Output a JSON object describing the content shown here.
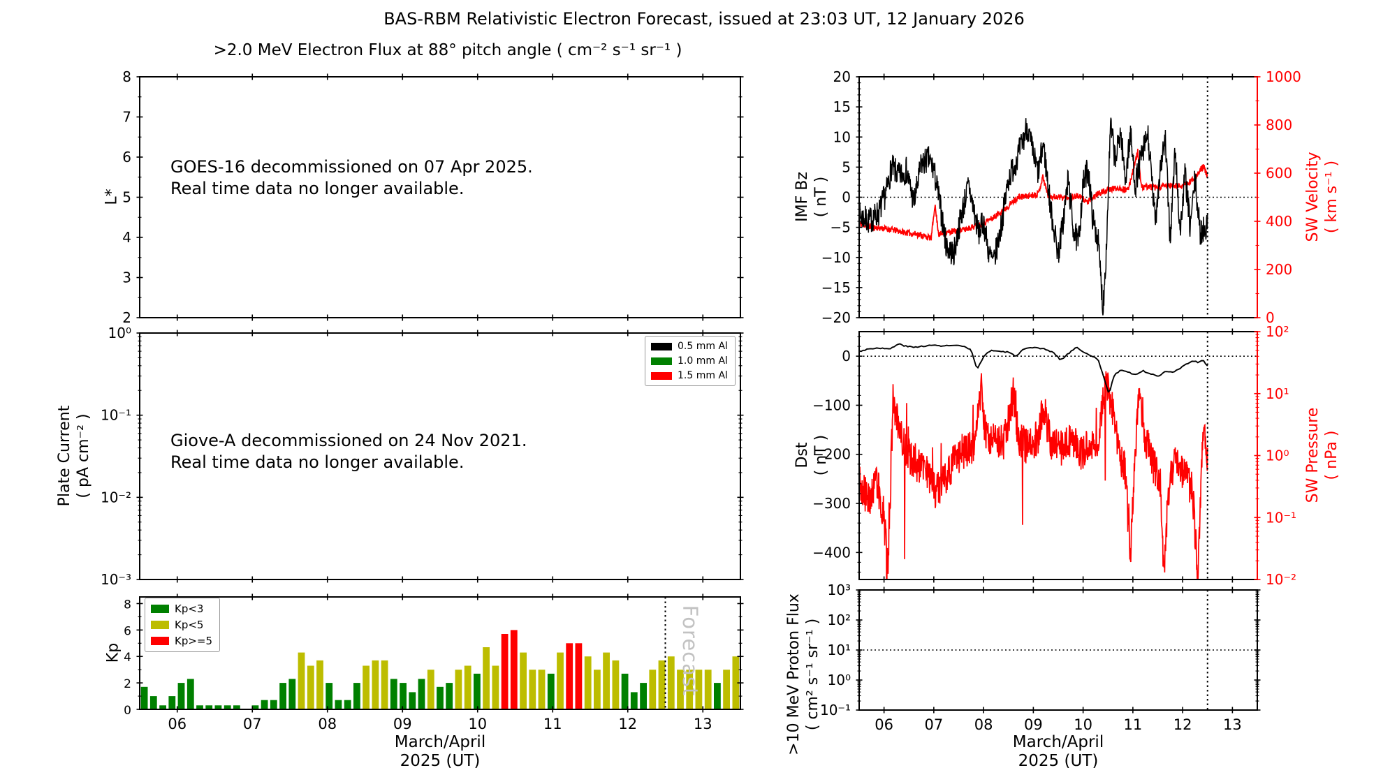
{
  "ui": {
    "figure_title": "BAS-RBM Relativistic Electron Forecast, issued at 23:03 UT, 12 January 2026"
  },
  "xaxis": {
    "tick_labels": [
      "06",
      "07",
      "08",
      "09",
      "10",
      "11",
      "12",
      "13"
    ],
    "tick_days": [
      6,
      7,
      8,
      9,
      10,
      11,
      12,
      13
    ],
    "range": [
      5.5,
      13.5
    ],
    "label": "March/April\n2025 (UT)"
  },
  "chart_data": [
    {
      "id": "electron_flux",
      "type": "empty-with-annotation",
      "title": ">2.0 MeV Electron Flux at 88° pitch angle ( cm⁻² s⁻¹ sr⁻¹ )",
      "ylabel": "L*",
      "yscale": "linear",
      "ylim": [
        2,
        8
      ],
      "yticks": [
        2,
        3,
        4,
        5,
        6,
        7,
        8
      ],
      "annotation": "GOES-16 decommissioned on 07 Apr 2025.\nReal time data no longer available."
    },
    {
      "id": "plate_current",
      "type": "empty-with-annotation",
      "ylabel": "Plate Current\n( pA cm⁻² )",
      "yscale": "log",
      "ylim": [
        0.001,
        1
      ],
      "ytick_labels": [
        "10⁰",
        "10⁻¹",
        "10⁻²",
        "10⁻³"
      ],
      "legend": [
        {
          "label": "0.5 mm Al",
          "color": "#000000"
        },
        {
          "label": "1.0 mm Al",
          "color": "#008000"
        },
        {
          "label": "1.5 mm Al",
          "color": "#ff0000"
        }
      ],
      "annotation": "Giove-A decommissioned on 24 Nov 2021.\nReal time data no longer available."
    },
    {
      "id": "kp",
      "type": "bar",
      "ylabel": "Kp",
      "ylim": [
        0,
        8.5
      ],
      "yticks": [
        0,
        2,
        4,
        6,
        8
      ],
      "bar_hours": 3,
      "values": [
        1.7,
        1.0,
        0.3,
        1.0,
        2.0,
        2.3,
        0.3,
        0.3,
        0.3,
        0.3,
        0.3,
        0.0,
        0.3,
        0.7,
        0.7,
        2.0,
        2.3,
        4.3,
        3.3,
        3.7,
        2.0,
        0.7,
        0.7,
        2.0,
        3.3,
        3.7,
        3.7,
        2.3,
        2.0,
        1.3,
        2.3,
        3.0,
        1.7,
        2.0,
        3.0,
        3.3,
        2.7,
        4.7,
        3.3,
        5.7,
        6.0,
        4.3,
        3.0,
        3.0,
        2.7,
        4.3,
        5.0,
        5.0,
        4.0,
        3.0,
        4.3,
        3.7,
        2.7,
        1.3,
        2.0,
        3.0,
        3.7,
        4.0,
        3.0,
        3.0,
        3.0,
        3.0,
        2.0,
        3.0,
        4.0
      ],
      "color_rule": {
        "green_below": 3,
        "red_from": 5
      },
      "colors": {
        "green": "#008000",
        "yellow": "#bdbd00",
        "red": "#ff0000"
      },
      "legend": [
        {
          "label": "Kp<3",
          "color": "#008000"
        },
        {
          "label": "Kp<5",
          "color": "#bdbd00"
        },
        {
          "label": "Kp>=5",
          "color": "#ff0000"
        }
      ],
      "forecast_day": 12.5,
      "forecast_label": "Forecast"
    },
    {
      "id": "imf_sw",
      "type": "line",
      "forecast_day": 12.5,
      "left": {
        "ylabel": "IMF Bz\n( nT )",
        "ylim": [
          -20,
          20
        ],
        "yticks": [
          20,
          15,
          10,
          5,
          0,
          -5,
          -10,
          -15,
          -20
        ],
        "hline": 0,
        "color": "#000000",
        "noise": 2.3,
        "seed": 7,
        "anchors": [
          [
            5.5,
            -3
          ],
          [
            5.7,
            -4
          ],
          [
            5.9,
            -2.5
          ],
          [
            6.05,
            1
          ],
          [
            6.15,
            5
          ],
          [
            6.3,
            3.5
          ],
          [
            6.45,
            4.5
          ],
          [
            6.6,
            -1
          ],
          [
            6.75,
            5.5
          ],
          [
            6.9,
            6.3
          ],
          [
            7.0,
            4.5
          ],
          [
            7.1,
            0
          ],
          [
            7.25,
            -8
          ],
          [
            7.4,
            -9.5
          ],
          [
            7.55,
            -3
          ],
          [
            7.7,
            2
          ],
          [
            7.8,
            -2
          ],
          [
            7.9,
            -6
          ],
          [
            8.0,
            -4
          ],
          [
            8.1,
            -9
          ],
          [
            8.2,
            -11
          ],
          [
            8.35,
            -5
          ],
          [
            8.5,
            3
          ],
          [
            8.65,
            6
          ],
          [
            8.8,
            9.5
          ],
          [
            8.87,
            12
          ],
          [
            9.0,
            7
          ],
          [
            9.1,
            4
          ],
          [
            9.2,
            9
          ],
          [
            9.35,
            -2
          ],
          [
            9.5,
            -9.5
          ],
          [
            9.6,
            -4
          ],
          [
            9.7,
            3
          ],
          [
            9.8,
            -5
          ],
          [
            9.9,
            -8
          ],
          [
            10.0,
            2
          ],
          [
            10.1,
            5
          ],
          [
            10.2,
            -4
          ],
          [
            10.3,
            -7
          ],
          [
            10.4,
            -18.5
          ],
          [
            10.47,
            -8
          ],
          [
            10.55,
            12
          ],
          [
            10.65,
            6
          ],
          [
            10.75,
            11
          ],
          [
            10.85,
            3
          ],
          [
            10.95,
            10.5
          ],
          [
            11.05,
            2
          ],
          [
            11.15,
            6
          ],
          [
            11.3,
            10.5
          ],
          [
            11.45,
            -4
          ],
          [
            11.55,
            5
          ],
          [
            11.65,
            9.5
          ],
          [
            11.75,
            -7
          ],
          [
            11.85,
            8
          ],
          [
            11.95,
            -6
          ],
          [
            12.05,
            4
          ],
          [
            12.15,
            -5
          ],
          [
            12.25,
            3
          ],
          [
            12.35,
            -6
          ],
          [
            12.5,
            -4.5
          ]
        ]
      },
      "right": {
        "ylabel": "SW Velocity\n( km s⁻¹ )",
        "ylim": [
          0,
          1000
        ],
        "yticks": [
          1000,
          800,
          600,
          400,
          200,
          0
        ],
        "color": "#ff0000",
        "noise": 13,
        "seed": 11,
        "anchors": [
          [
            5.5,
            390
          ],
          [
            5.8,
            375
          ],
          [
            6.1,
            368
          ],
          [
            6.4,
            355
          ],
          [
            6.7,
            345
          ],
          [
            6.95,
            330
          ],
          [
            7.02,
            470
          ],
          [
            7.1,
            345
          ],
          [
            7.3,
            355
          ],
          [
            7.6,
            365
          ],
          [
            7.9,
            385
          ],
          [
            8.2,
            415
          ],
          [
            8.5,
            465
          ],
          [
            8.7,
            500
          ],
          [
            8.9,
            505
          ],
          [
            9.1,
            515
          ],
          [
            9.19,
            585
          ],
          [
            9.3,
            505
          ],
          [
            9.6,
            498
          ],
          [
            9.9,
            505
          ],
          [
            10.1,
            480
          ],
          [
            10.3,
            515
          ],
          [
            10.5,
            530
          ],
          [
            10.7,
            540
          ],
          [
            10.9,
            528
          ],
          [
            11.1,
            690
          ],
          [
            11.17,
            540
          ],
          [
            11.3,
            545
          ],
          [
            11.5,
            538
          ],
          [
            11.7,
            550
          ],
          [
            11.9,
            545
          ],
          [
            12.1,
            555
          ],
          [
            12.3,
            595
          ],
          [
            12.42,
            630
          ],
          [
            12.5,
            580
          ]
        ]
      }
    },
    {
      "id": "dst_pressure",
      "type": "line",
      "forecast_day": 12.5,
      "left": {
        "ylabel": "Dst\n( nT )",
        "ylim": [
          -455,
          50
        ],
        "yticks": [
          0,
          -100,
          -200,
          -300,
          -400
        ],
        "hline": 0,
        "color": "#000000",
        "noise": 1.3,
        "seed": 3,
        "anchors": [
          [
            5.5,
            10
          ],
          [
            5.7,
            15
          ],
          [
            5.9,
            17
          ],
          [
            6.1,
            14
          ],
          [
            6.3,
            25
          ],
          [
            6.45,
            20
          ],
          [
            6.6,
            18
          ],
          [
            6.8,
            21
          ],
          [
            7.0,
            22
          ],
          [
            7.2,
            21
          ],
          [
            7.4,
            22
          ],
          [
            7.6,
            20
          ],
          [
            7.75,
            12
          ],
          [
            7.87,
            -28
          ],
          [
            8.0,
            0
          ],
          [
            8.15,
            12
          ],
          [
            8.3,
            10
          ],
          [
            8.5,
            8
          ],
          [
            8.65,
            0
          ],
          [
            8.8,
            14
          ],
          [
            9.0,
            17
          ],
          [
            9.2,
            15
          ],
          [
            9.4,
            8
          ],
          [
            9.55,
            -8
          ],
          [
            9.7,
            5
          ],
          [
            9.85,
            18
          ],
          [
            10.0,
            10
          ],
          [
            10.15,
            0
          ],
          [
            10.3,
            -5
          ],
          [
            10.45,
            -55
          ],
          [
            10.52,
            -78
          ],
          [
            10.62,
            -40
          ],
          [
            10.75,
            -28
          ],
          [
            10.9,
            -32
          ],
          [
            11.05,
            -38
          ],
          [
            11.2,
            -30
          ],
          [
            11.35,
            -35
          ],
          [
            11.5,
            -42
          ],
          [
            11.65,
            -30
          ],
          [
            11.8,
            -32
          ],
          [
            11.95,
            -25
          ],
          [
            12.1,
            -15
          ],
          [
            12.2,
            -9
          ],
          [
            12.3,
            -12
          ],
          [
            12.4,
            -8
          ],
          [
            12.5,
            -20
          ]
        ]
      },
      "right": {
        "ylabel": "SW Pressure\n( nPa )",
        "yscale": "log",
        "ylim": [
          0.01,
          100
        ],
        "ytick_labels": [
          "10²",
          "10¹",
          "10⁰",
          "10⁻¹",
          "10⁻²"
        ],
        "color": "#ff0000",
        "noise": 0.3,
        "seed": 19,
        "anchors": [
          [
            5.5,
            0.35
          ],
          [
            5.7,
            0.2
          ],
          [
            5.85,
            0.4
          ],
          [
            6.0,
            0.1
          ],
          [
            6.08,
            0.012
          ],
          [
            6.18,
            8
          ],
          [
            6.3,
            2.5
          ],
          [
            6.5,
            1.0
          ],
          [
            6.7,
            0.7
          ],
          [
            6.9,
            0.5
          ],
          [
            7.05,
            0.25
          ],
          [
            7.2,
            0.4
          ],
          [
            7.4,
            0.8
          ],
          [
            7.6,
            1.2
          ],
          [
            7.8,
            1.5
          ],
          [
            7.95,
            12
          ],
          [
            8.05,
            1.8
          ],
          [
            8.2,
            2.0
          ],
          [
            8.4,
            1.5
          ],
          [
            8.6,
            10
          ],
          [
            8.7,
            1.8
          ],
          [
            8.9,
            1.4
          ],
          [
            9.1,
            2.0
          ],
          [
            9.2,
            6
          ],
          [
            9.35,
            1.6
          ],
          [
            9.55,
            1.3
          ],
          [
            9.75,
            1.8
          ],
          [
            9.95,
            1.1
          ],
          [
            10.15,
            1.4
          ],
          [
            10.3,
            2.0
          ],
          [
            10.45,
            12
          ],
          [
            10.55,
            8
          ],
          [
            10.65,
            3
          ],
          [
            10.75,
            1.0
          ],
          [
            10.85,
            0.6
          ],
          [
            10.95,
            0.02
          ],
          [
            11.05,
            1.2
          ],
          [
            11.12,
            8
          ],
          [
            11.25,
            2.0
          ],
          [
            11.4,
            0.7
          ],
          [
            11.55,
            0.4
          ],
          [
            11.62,
            0.015
          ],
          [
            11.75,
            0.6
          ],
          [
            11.9,
            0.8
          ],
          [
            12.05,
            0.5
          ],
          [
            12.2,
            0.25
          ],
          [
            12.3,
            0.012
          ],
          [
            12.42,
            3
          ],
          [
            12.5,
            0.8
          ]
        ]
      }
    },
    {
      "id": "proton",
      "type": "empty",
      "ylabel": ">10 MeV Proton Flux\n( cm² s⁻¹ sr⁻¹ )",
      "yscale": "log",
      "ylim": [
        0.1,
        1000
      ],
      "ytick_labels": [
        "10³",
        "10²",
        "10¹",
        "10⁰",
        "10⁻¹"
      ],
      "hline": 10,
      "forecast_day": 12.5
    }
  ]
}
